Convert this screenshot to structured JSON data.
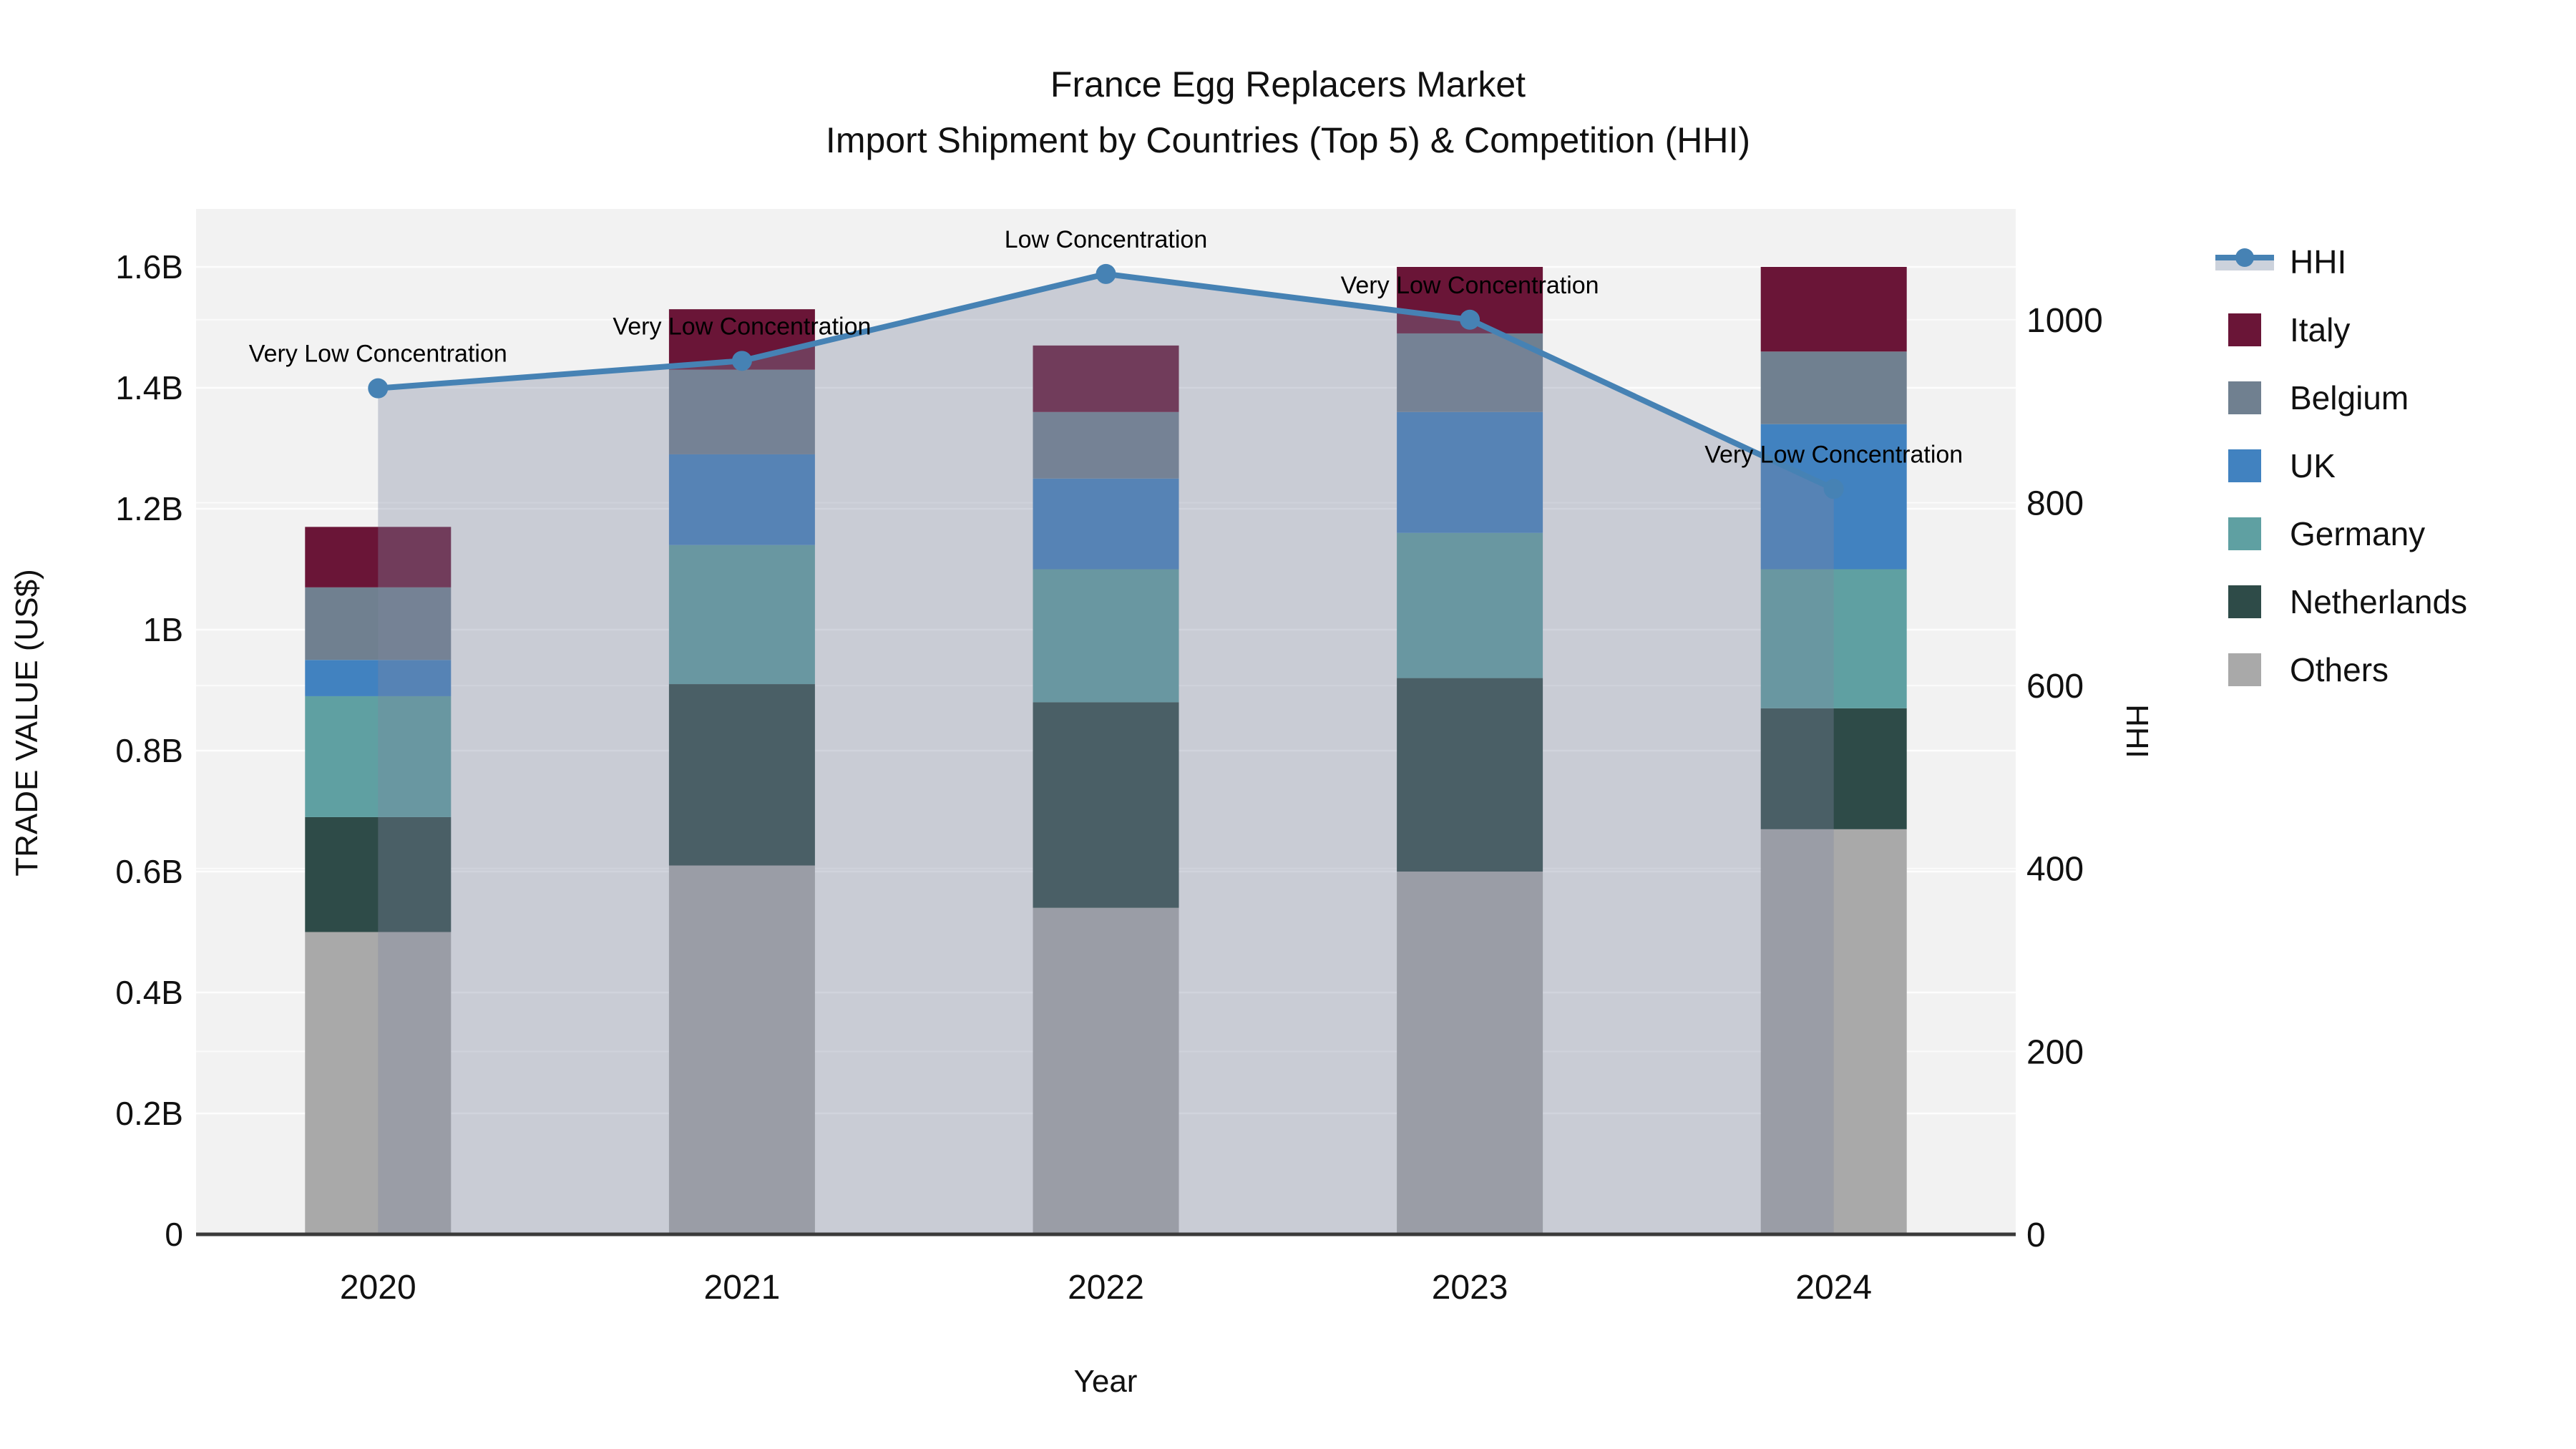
{
  "title": {
    "line1": "France Egg Replacers Market",
    "line2": "Import Shipment by Countries (Top 5) & Competition (HHI)"
  },
  "axes": {
    "x": {
      "title": "Year",
      "categories": [
        "2020",
        "2021",
        "2022",
        "2023",
        "2024"
      ]
    },
    "y_left": {
      "title": "TRADE VALUE (US$)",
      "tick_labels": [
        "0",
        "0.2B",
        "0.4B",
        "0.6B",
        "0.8B",
        "1B",
        "1.2B",
        "1.4B",
        "1.6B"
      ],
      "tick_values": [
        0,
        0.2,
        0.4,
        0.6,
        0.8,
        1.0,
        1.2,
        1.4,
        1.6
      ],
      "range": [
        0,
        1.696
      ]
    },
    "y_right": {
      "title": "HHI",
      "tick_labels": [
        "0",
        "200",
        "400",
        "600",
        "800",
        "1000"
      ],
      "tick_values": [
        0,
        200,
        400,
        600,
        800,
        1000
      ],
      "range": [
        0,
        1121
      ]
    }
  },
  "chart_data": {
    "type": "bar",
    "subtype": "stacked-bars-with-line-overlay",
    "title": "France Egg Replacers Market — Import Shipment by Countries (Top 5) & Competition (HHI)",
    "xlabel": "Year",
    "ylabel": "TRADE VALUE (US$)",
    "y2label": "HHI",
    "grid": true,
    "legend_position": "right",
    "categories": [
      "2020",
      "2021",
      "2022",
      "2023",
      "2024"
    ],
    "bar_unit": "billion US$",
    "series": [
      {
        "name": "Others",
        "color": "#a9a9a9",
        "values": [
          0.5,
          0.61,
          0.54,
          0.6,
          0.67
        ]
      },
      {
        "name": "Netherlands",
        "color": "#2e4b48",
        "values": [
          0.19,
          0.3,
          0.34,
          0.32,
          0.2
        ]
      },
      {
        "name": "Germany",
        "color": "#5fa0a2",
        "values": [
          0.2,
          0.23,
          0.22,
          0.24,
          0.23
        ]
      },
      {
        "name": "UK",
        "color": "#4182c0",
        "values": [
          0.06,
          0.15,
          0.15,
          0.2,
          0.24
        ]
      },
      {
        "name": "Belgium",
        "color": "#708090",
        "values": [
          0.12,
          0.14,
          0.11,
          0.13,
          0.12
        ]
      },
      {
        "name": "Italy",
        "color": "#6a1537",
        "values": [
          0.1,
          0.1,
          0.11,
          0.11,
          0.14
        ]
      }
    ],
    "bar_totals": [
      1.17,
      1.53,
      1.47,
      1.6,
      1.6
    ],
    "line_series": {
      "name": "HHI",
      "axis": "y_right",
      "color": "#4682b4",
      "area_fill_color": "rgba(125,135,161,0.35)",
      "values": [
        925,
        955,
        1050,
        1000,
        815
      ]
    },
    "annotations": [
      {
        "x": "2020",
        "label": "Very Low Concentration"
      },
      {
        "x": "2021",
        "label": "Very Low Concentration"
      },
      {
        "x": "2022",
        "label": "Low Concentration"
      },
      {
        "x": "2023",
        "label": "Very Low Concentration"
      },
      {
        "x": "2024",
        "label": "Very Low Concentration"
      }
    ]
  },
  "legend": {
    "items": [
      {
        "label": "HHI",
        "type": "line",
        "color": "#4682b4"
      },
      {
        "label": "Italy",
        "type": "swatch",
        "color": "#6a1537"
      },
      {
        "label": "Belgium",
        "type": "swatch",
        "color": "#708090"
      },
      {
        "label": "UK",
        "type": "swatch",
        "color": "#4182c0"
      },
      {
        "label": "Germany",
        "type": "swatch",
        "color": "#5fa0a2"
      },
      {
        "label": "Netherlands",
        "type": "swatch",
        "color": "#2e4b48"
      },
      {
        "label": "Others",
        "type": "swatch",
        "color": "#a9a9a9"
      }
    ]
  },
  "colors": {
    "plot_background": "#f2f2f2",
    "page_background": "#ffffff",
    "gridline": "#ffffff",
    "baseline": "#3a3a3a",
    "hhi_line": "#4682b4",
    "hhi_area": "rgba(125,135,161,0.35)",
    "legend_fill_band": "#ccd2dc"
  }
}
